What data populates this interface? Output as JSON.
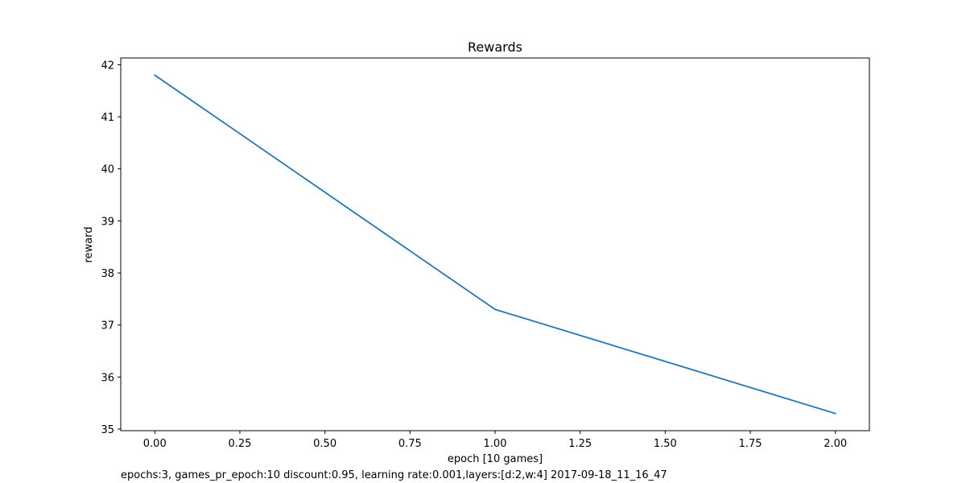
{
  "chart_data": {
    "type": "line",
    "title": "Rewards",
    "xlabel": "epoch [10 games]",
    "ylabel": "reward",
    "xlim": [
      -0.1,
      2.1
    ],
    "ylim": [
      34.97,
      42.13
    ],
    "xticks": [
      0.0,
      0.25,
      0.5,
      0.75,
      1.0,
      1.25,
      1.5,
      1.75,
      2.0
    ],
    "xtick_labels": [
      "0.00",
      "0.25",
      "0.50",
      "0.75",
      "1.00",
      "1.25",
      "1.50",
      "1.75",
      "2.00"
    ],
    "yticks": [
      35,
      36,
      37,
      38,
      39,
      40,
      41,
      42
    ],
    "ytick_labels": [
      "35",
      "36",
      "37",
      "38",
      "39",
      "40",
      "41",
      "42"
    ],
    "grid": false,
    "series": [
      {
        "color": "#1f77b4",
        "x": [
          0,
          1,
          2
        ],
        "y": [
          41.8,
          37.3,
          35.3
        ]
      }
    ]
  },
  "footnote": "epochs:3, games_pr_epoch:10 discount:0.95, learning rate:0.001,layers:[d:2,w:4] 2017-09-18_11_16_47"
}
